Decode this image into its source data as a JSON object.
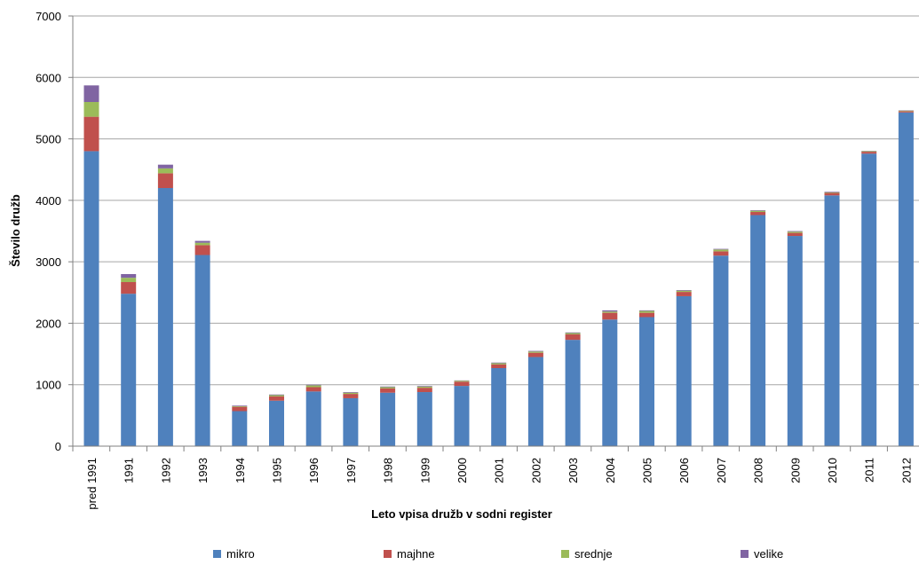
{
  "chart_data": {
    "type": "bar",
    "stacked": true,
    "xlabel": "Leto vpisa družb v sodni register",
    "ylabel": "Število družb",
    "ylim": [
      0,
      7000
    ],
    "yticks": [
      0,
      1000,
      2000,
      3000,
      4000,
      5000,
      6000,
      7000
    ],
    "grid": true,
    "legend_position": "bottom",
    "categories": [
      "pred 1991",
      "1991",
      "1992",
      "1993",
      "1994",
      "1995",
      "1996",
      "1997",
      "1998",
      "1999",
      "2000",
      "2001",
      "2002",
      "2003",
      "2004",
      "2005",
      "2006",
      "2007",
      "2008",
      "2009",
      "2010",
      "2011",
      "2012"
    ],
    "series": [
      {
        "name": "mikro",
        "color": "#4F81BD",
        "values": [
          4800,
          2480,
          4200,
          3110,
          570,
          740,
          890,
          780,
          870,
          880,
          980,
          1270,
          1450,
          1730,
          2060,
          2100,
          2440,
          3100,
          3760,
          3420,
          4080,
          4760,
          5430
        ]
      },
      {
        "name": "majhne",
        "color": "#C0504D",
        "values": [
          560,
          190,
          240,
          160,
          70,
          70,
          70,
          70,
          70,
          70,
          70,
          60,
          70,
          90,
          110,
          70,
          70,
          70,
          50,
          50,
          40,
          30,
          20
        ]
      },
      {
        "name": "srednje",
        "color": "#9BBB59",
        "values": [
          240,
          70,
          80,
          40,
          10,
          20,
          30,
          20,
          20,
          20,
          15,
          20,
          20,
          20,
          20,
          30,
          20,
          30,
          20,
          20,
          10,
          10,
          10
        ]
      },
      {
        "name": "velike",
        "color": "#8064A2",
        "values": [
          270,
          60,
          60,
          30,
          10,
          10,
          10,
          10,
          10,
          10,
          5,
          10,
          10,
          10,
          20,
          10,
          10,
          10,
          10,
          10,
          10,
          5,
          5
        ]
      }
    ]
  }
}
